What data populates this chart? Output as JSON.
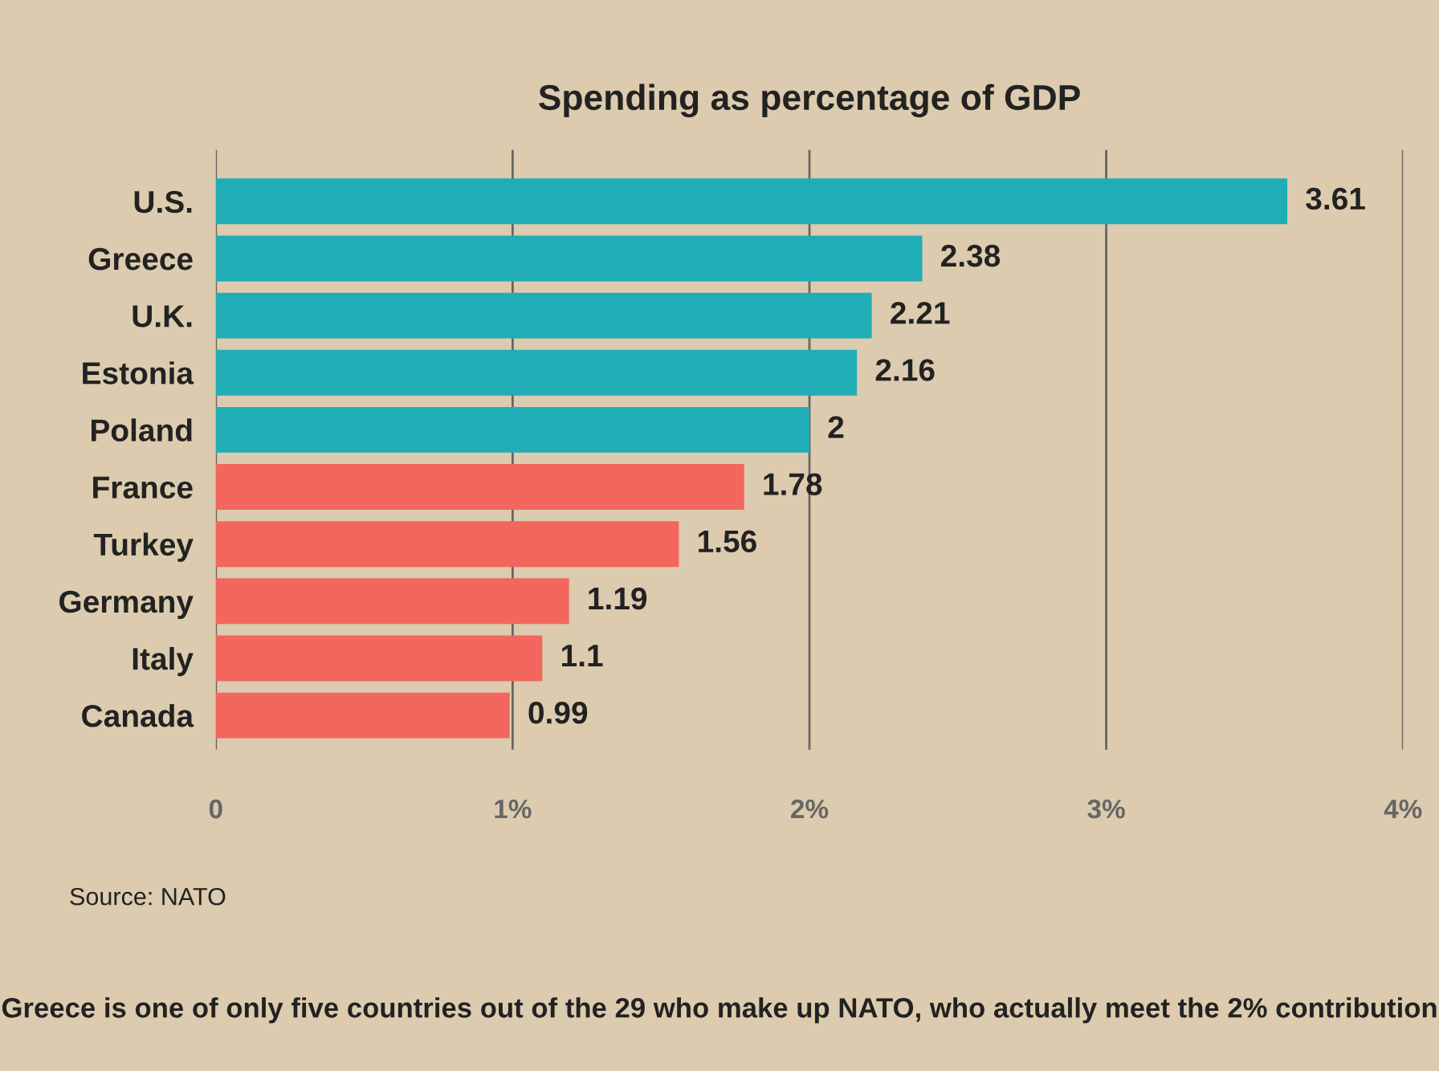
{
  "chart_data": {
    "type": "bar",
    "orientation": "horizontal",
    "title": "Spending as percentage of GDP",
    "categories": [
      "U.S.",
      "Greece",
      "U.K.",
      "Estonia",
      "Poland",
      "France",
      "Turkey",
      "Germany",
      "Italy",
      "Canada"
    ],
    "values": [
      3.61,
      2.38,
      2.21,
      2.16,
      2,
      1.78,
      1.56,
      1.19,
      1.1,
      0.99
    ],
    "colors": [
      "#20adb5",
      "#20adb5",
      "#20adb5",
      "#20adb5",
      "#20adb5",
      "#f2665e",
      "#f2665e",
      "#f2665e",
      "#f2665e",
      "#f2665e"
    ],
    "data_labels": true,
    "xlim": [
      0,
      4
    ],
    "xticks": [
      0,
      {
        "value": 1,
        "label": "1%"
      },
      {
        "value": 2,
        "label": "2%"
      },
      {
        "value": 3,
        "label": "3%"
      },
      {
        "value": 4,
        "label": "4%"
      }
    ],
    "grid": "x",
    "annotations": [
      "Source: NATO",
      "Greece is one of only five countries out of the 29 who make up NATO, who actually meet the 2% contribution"
    ]
  }
}
